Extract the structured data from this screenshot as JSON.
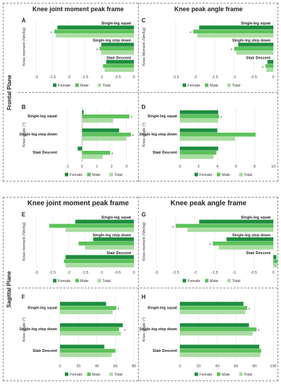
{
  "planes": [
    {
      "plane_label": "Frontal Plane",
      "col_titles": [
        "Knee joint moment peak frame",
        "Knee peak angle frame"
      ]
    },
    {
      "plane_label": "Sagittal Plane",
      "col_titles": [
        "Knee joint moment peak frame",
        "Knee peak angle frame"
      ]
    }
  ],
  "colors": {
    "Female": "#1e8e3e",
    "Male": "#5cc25a",
    "Total": "#a9dca0"
  },
  "chart_data": [
    {
      "id": "A",
      "type": "bar",
      "orientation": "horizontal",
      "label_position": "inside",
      "ylabel": "Knee moment (Nm/kg)",
      "xlim": [
        -3,
        0
      ],
      "ticks": [
        -3,
        -2.5,
        -2,
        -1.5,
        -1,
        -0.5,
        0
      ],
      "categories": [
        "Single-leg squat",
        "Single-leg step down",
        "Stair Descent"
      ],
      "series": [
        {
          "name": "Female",
          "values": [
            -2.35,
            -1.0,
            -0.85
          ]
        },
        {
          "name": "Male",
          "values": [
            -2.45,
            -1.05,
            -0.95
          ]
        },
        {
          "name": "Total",
          "values": [
            -2.4,
            -1.0,
            -0.9
          ]
        }
      ],
      "annotations": [
        "*",
        "*"
      ],
      "legend": [
        "Female",
        "Male",
        "Total"
      ]
    },
    {
      "id": "C",
      "type": "bar",
      "orientation": "horizontal",
      "label_position": "inside",
      "ylabel": "Knee Moment (Nm/kg)",
      "xlim": [
        -3,
        0
      ],
      "ticks": [
        -2.5,
        -2,
        -1.5,
        -1,
        -0.5,
        0
      ],
      "categories": [
        "Single-leg squat",
        "Single-leg step down",
        "Stair Descent"
      ],
      "series": [
        {
          "name": "Female",
          "values": [
            -1.9,
            -0.9,
            -0.15
          ]
        },
        {
          "name": "Male",
          "values": [
            -2.05,
            -1.0,
            -0.2
          ]
        },
        {
          "name": "Total",
          "values": [
            -1.95,
            -0.95,
            -0.18
          ]
        }
      ],
      "annotations": [
        "*",
        "*",
        "*"
      ],
      "legend": [
        "Female",
        "Male",
        "Total"
      ]
    },
    {
      "id": "B",
      "type": "bar",
      "orientation": "horizontal",
      "label_position": "left",
      "ylabel": "Knee angle (°)",
      "xlim": [
        -1.5,
        3.5
      ],
      "ticks": [
        -1,
        0,
        1,
        2,
        3
      ],
      "categories": [
        "Single-leg squat",
        "Single-leg step down",
        "Stair Descent"
      ],
      "series": [
        {
          "name": "Female",
          "values": [
            0.1,
            2.5,
            -0.3
          ]
        },
        {
          "name": "Male",
          "values": [
            3.2,
            3.3,
            1.9
          ]
        },
        {
          "name": "Total",
          "values": [
            2.1,
            3.0,
            1.4
          ]
        }
      ],
      "annotations": [
        "*",
        "*",
        "*"
      ],
      "legend": [
        "Female",
        "Male",
        "Total"
      ]
    },
    {
      "id": "D",
      "type": "bar",
      "orientation": "horizontal",
      "label_position": "left",
      "ylabel": "Knee angle (°)",
      "xlim": [
        0,
        10
      ],
      "ticks": [
        0,
        2,
        4,
        6,
        8,
        10
      ],
      "categories": [
        "Single-leg squat",
        "Single-leg step down",
        "Stair Descent"
      ],
      "series": [
        {
          "name": "Female",
          "values": [
            4.1,
            4.0,
            4.1
          ]
        },
        {
          "name": "Male",
          "values": [
            4.2,
            8.1,
            3.9
          ]
        },
        {
          "name": "Total",
          "values": [
            4.1,
            5.9,
            3.6
          ]
        }
      ],
      "annotations": [
        "*"
      ],
      "legend": [
        "Female",
        "Male",
        "Total"
      ]
    },
    {
      "id": "E",
      "type": "bar",
      "orientation": "horizontal",
      "label_position": "inside",
      "ylabel": "Knee moment (Nm/kg)",
      "xlim": [
        -3,
        0
      ],
      "ticks": [
        -3,
        -2.5,
        -2,
        -1.5,
        -1,
        -0.5,
        0
      ],
      "categories": [
        "Single-leg squat",
        "Single-leg step down",
        "Stair Descent"
      ],
      "series": [
        {
          "name": "Female",
          "values": [
            -1.8,
            -1.25,
            -2.1
          ]
        },
        {
          "name": "Male",
          "values": [
            -2.6,
            -1.7,
            -2.15
          ]
        },
        {
          "name": "Total",
          "values": [
            -2.1,
            -1.5,
            -2.1
          ]
        }
      ],
      "annotations": [],
      "legend": [
        "Female",
        "Male",
        "Total"
      ]
    },
    {
      "id": "G",
      "type": "bar",
      "orientation": "horizontal",
      "label_position": "inside",
      "ylabel": "Knee moment (Nm/kg)",
      "xlim": [
        -3,
        0
      ],
      "ticks": [
        -3,
        -2.5,
        -2,
        -1.5,
        -1,
        -0.5,
        0
      ],
      "categories": [
        "Single-leg squat",
        "Single-leg step down",
        "Stair Descent"
      ],
      "series": [
        {
          "name": "Female",
          "values": [
            -1.9,
            -1.2,
            0.08
          ]
        },
        {
          "name": "Male",
          "values": [
            -2.5,
            -1.55,
            0.12
          ]
        },
        {
          "name": "Total",
          "values": [
            -2.2,
            -1.4,
            0.1
          ]
        }
      ],
      "annotations": [
        "*",
        "*"
      ],
      "legend": [
        "Female",
        "Male",
        "Total"
      ]
    },
    {
      "id": "F",
      "type": "bar",
      "orientation": "horizontal",
      "label_position": "left",
      "ylabel": "Knee angle (°)",
      "xlim": [
        0,
        80
      ],
      "ticks": [
        0,
        20,
        40,
        60,
        80
      ],
      "categories": [
        "Single-leg squat",
        "Single-leg step down",
        "Stair Descent"
      ],
      "series": [
        {
          "name": "Female",
          "values": [
            50,
            68,
            48
          ]
        },
        {
          "name": "Male",
          "values": [
            61,
            64,
            60
          ]
        },
        {
          "name": "Total",
          "values": [
            57,
            66,
            56
          ]
        }
      ],
      "annotations": [
        "*",
        "*"
      ],
      "legend": [
        "Female",
        "Male",
        "Total"
      ]
    },
    {
      "id": "H",
      "type": "bar",
      "orientation": "horizontal",
      "label_position": "left",
      "ylabel": "Knee angle (°)",
      "xlim": [
        0,
        100
      ],
      "ticks": [
        0,
        20,
        40,
        60,
        80,
        100
      ],
      "categories": [
        "Single-leg squat",
        "Single-leg step down",
        "Stair Descent"
      ],
      "series": [
        {
          "name": "Female",
          "values": [
            68,
            74,
            85
          ]
        },
        {
          "name": "Male",
          "values": [
            72,
            82,
            87
          ]
        },
        {
          "name": "Total",
          "values": [
            70,
            78,
            86
          ]
        }
      ],
      "annotations": [
        "*",
        "*"
      ],
      "legend": [
        "Female",
        "Male",
        "Total"
      ]
    }
  ]
}
